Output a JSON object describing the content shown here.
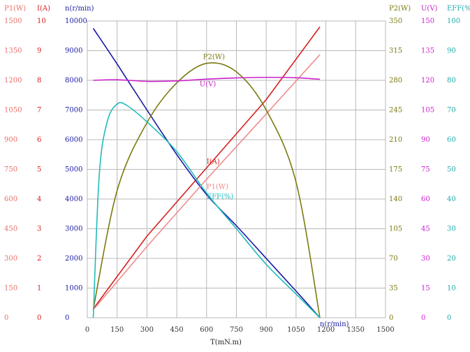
{
  "chart_data": {
    "type": "line",
    "xlabel": "T(mN.m)",
    "x_ticks": [
      0,
      150,
      300,
      450,
      600,
      750,
      900,
      1050,
      1200,
      1350,
      1500
    ],
    "x_tick_labels": [
      "0",
      "150",
      "300",
      "450",
      "600",
      "750",
      "900",
      "1050",
      "1200",
      "1350",
      "1500"
    ],
    "xlim": [
      0,
      1500
    ],
    "axes": [
      {
        "key": "P1",
        "title": "P1(W)",
        "color": "#e8706a",
        "side": "left",
        "ylim": [
          0,
          1500
        ],
        "tick_labels": [
          "0",
          "150",
          "300",
          "450",
          "600",
          "750",
          "900",
          "1050",
          "1200",
          "1350",
          "1500"
        ]
      },
      {
        "key": "I",
        "title": "I(A)",
        "color": "#d62020",
        "side": "left",
        "ylim": [
          0,
          10
        ],
        "tick_labels": [
          "0",
          "1",
          "2",
          "3",
          "4",
          "5",
          "6",
          "7",
          "8",
          "9",
          "10"
        ]
      },
      {
        "key": "n",
        "title": "n(r/min)",
        "color": "#1a1aa6",
        "side": "left",
        "ylim": [
          0,
          10000
        ],
        "tick_labels": [
          "0",
          "1000",
          "2000",
          "3000",
          "4000",
          "5000",
          "6000",
          "7000",
          "8000",
          "9000",
          "10000"
        ]
      },
      {
        "key": "P2",
        "title": "P2(W)",
        "color": "#7a7a10",
        "side": "right",
        "ylim": [
          0,
          350
        ],
        "tick_labels": [
          "0",
          "35",
          "70",
          "105",
          "140",
          "175",
          "210",
          "245",
          "280",
          "315",
          "350"
        ]
      },
      {
        "key": "U",
        "title": "U(V)",
        "color": "#cc22cc",
        "side": "right",
        "ylim": [
          0,
          150
        ],
        "tick_labels": [
          "0",
          "15",
          "30",
          "45",
          "60",
          "75",
          "90",
          "105",
          "120",
          "135",
          "150"
        ]
      },
      {
        "key": "EFF",
        "title": "EFF(%)",
        "color": "#22aaaa",
        "side": "right",
        "ylim": [
          0,
          100
        ],
        "tick_labels": [
          "0",
          "10",
          "20",
          "30",
          "40",
          "50",
          "60",
          "70",
          "80",
          "90",
          "100"
        ]
      }
    ],
    "series": [
      {
        "name": "n(r/min)",
        "axis": "n",
        "color": "#1a1aa6",
        "x": [
          30,
          150,
          300,
          450,
          600,
          750,
          900,
          1050,
          1170
        ],
        "y": [
          9750,
          8550,
          7000,
          5500,
          4150,
          3100,
          2000,
          900,
          0
        ],
        "label_at": 1170
      },
      {
        "name": "I(A)",
        "axis": "I",
        "color": "#d62020",
        "x": [
          30,
          300,
          600,
          900,
          1170
        ],
        "y": [
          0.3,
          2.75,
          5.05,
          7.35,
          9.8
        ],
        "label_at": 600
      },
      {
        "name": "P1(W)",
        "axis": "P1",
        "color": "#f08c8c",
        "x": [
          30,
          300,
          600,
          900,
          1170
        ],
        "y": [
          40,
          360,
          700,
          1030,
          1330
        ],
        "label_at": 600
      },
      {
        "name": "P2(W)",
        "axis": "P2",
        "color": "#7a7a10",
        "x": [
          30,
          150,
          300,
          450,
          600,
          750,
          900,
          1050,
          1170
        ],
        "y": [
          10,
          150,
          230,
          277,
          300,
          290,
          245,
          160,
          0
        ],
        "label_at": 600
      },
      {
        "name": "U(V)",
        "axis": "U",
        "color": "#cc22cc",
        "x": [
          30,
          150,
          300,
          450,
          600,
          750,
          900,
          1050,
          1170
        ],
        "y": [
          120,
          120.3,
          119.5,
          119.7,
          120.6,
          121.2,
          121.5,
          121.3,
          120.5
        ],
        "label_at": 600
      },
      {
        "name": "EFF(%)",
        "axis": "EFF",
        "color": "#22bbbb",
        "x": [
          30,
          60,
          100,
          150,
          200,
          300,
          450,
          600,
          750,
          900,
          1050,
          1170
        ],
        "y": [
          0,
          48,
          66,
          72,
          71.5,
          66,
          56,
          42,
          30,
          18,
          8,
          0
        ],
        "label_at": 600
      }
    ]
  }
}
